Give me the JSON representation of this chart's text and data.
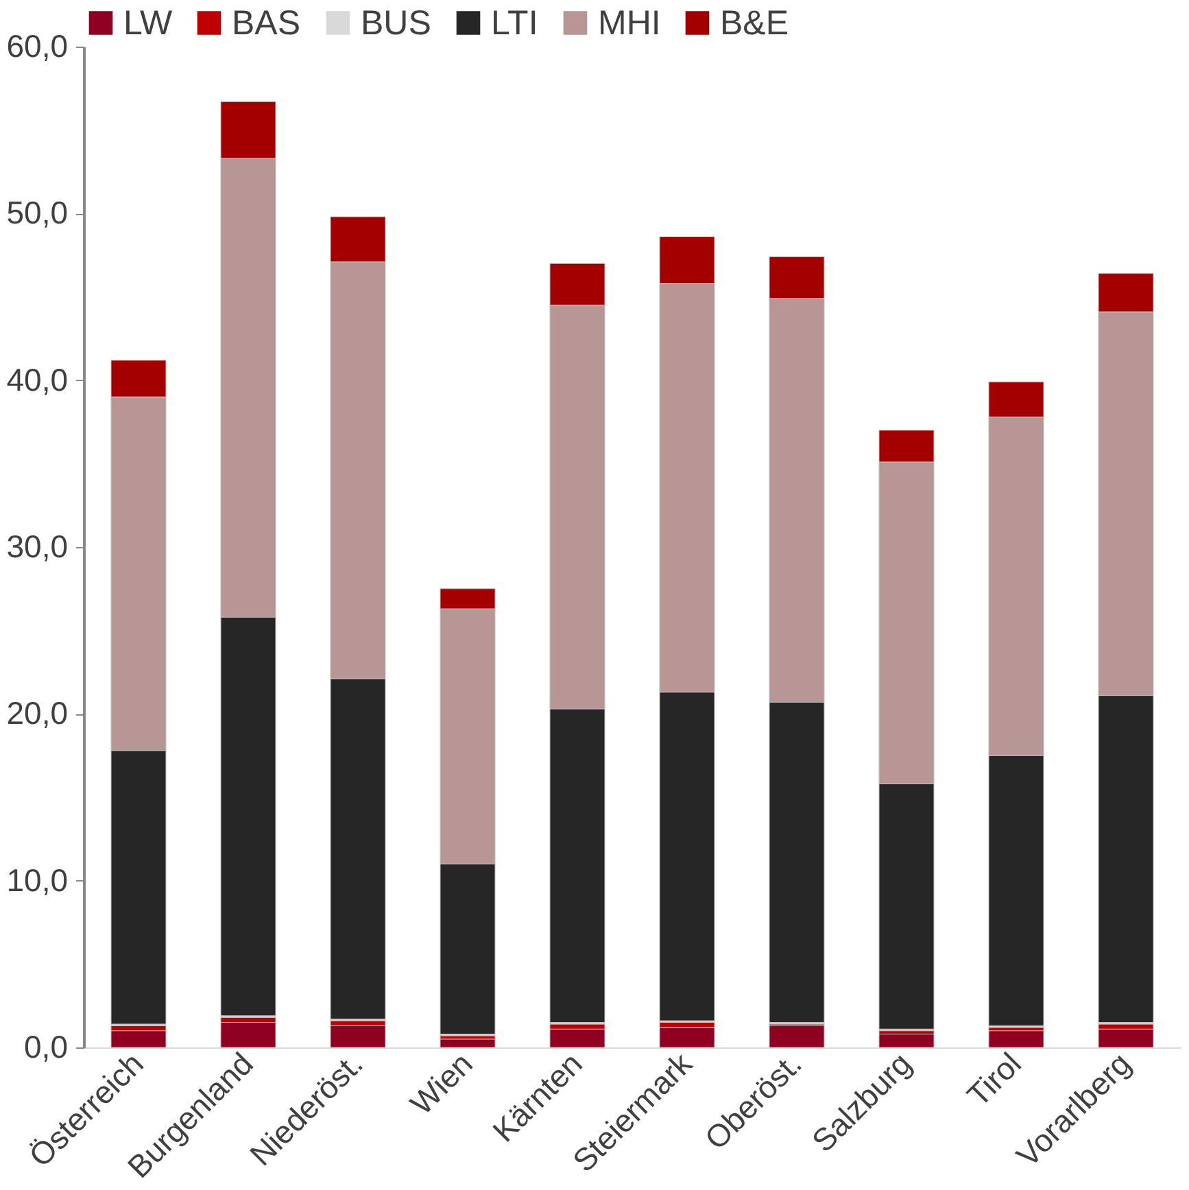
{
  "chart_data": {
    "type": "bar",
    "stacked": true,
    "legend": "top",
    "grid": false,
    "categories": [
      "Österreich",
      "Burgenland",
      "Niederöst.",
      "Wien",
      "Kärnten",
      "Steiermark",
      "Oberöst.",
      "Salzburg",
      "Tirol",
      "Vorarlberg"
    ],
    "ylim": [
      0,
      60
    ],
    "yticks": [
      {
        "value": 0,
        "label": "0,0"
      },
      {
        "value": 10,
        "label": "10,0"
      },
      {
        "value": 20,
        "label": "20,0"
      },
      {
        "value": 30,
        "label": "30,0"
      },
      {
        "value": 40,
        "label": "40,0"
      },
      {
        "value": 50,
        "label": "50,0"
      },
      {
        "value": 60,
        "label": "60,0"
      }
    ],
    "series": [
      {
        "name": "LW",
        "color": "#900020",
        "values": [
          1.0,
          1.5,
          1.3,
          0.5,
          1.1,
          1.2,
          1.3,
          0.8,
          1.0,
          1.1
        ]
      },
      {
        "name": "BAS",
        "color": "#c00000",
        "values": [
          0.3,
          0.3,
          0.3,
          0.2,
          0.3,
          0.3,
          0.1,
          0.2,
          0.2,
          0.3
        ]
      },
      {
        "name": "BUS",
        "color": "#d9d9d9",
        "values": [
          0.1,
          0.1,
          0.1,
          0.1,
          0.1,
          0.1,
          0.1,
          0.1,
          0.1,
          0.1
        ]
      },
      {
        "name": "LTI",
        "color": "#262626",
        "values": [
          16.4,
          23.9,
          20.4,
          10.2,
          18.8,
          19.7,
          19.2,
          14.7,
          16.2,
          19.6
        ]
      },
      {
        "name": "MHI",
        "color": "#b89696",
        "values": [
          21.2,
          27.5,
          25.0,
          15.3,
          24.2,
          24.5,
          24.2,
          19.3,
          20.3,
          23.0
        ]
      },
      {
        "name": "B&E",
        "color": "#a50000",
        "values": [
          2.2,
          3.4,
          2.7,
          1.2,
          2.5,
          2.8,
          2.5,
          1.9,
          2.1,
          2.3
        ]
      }
    ]
  }
}
